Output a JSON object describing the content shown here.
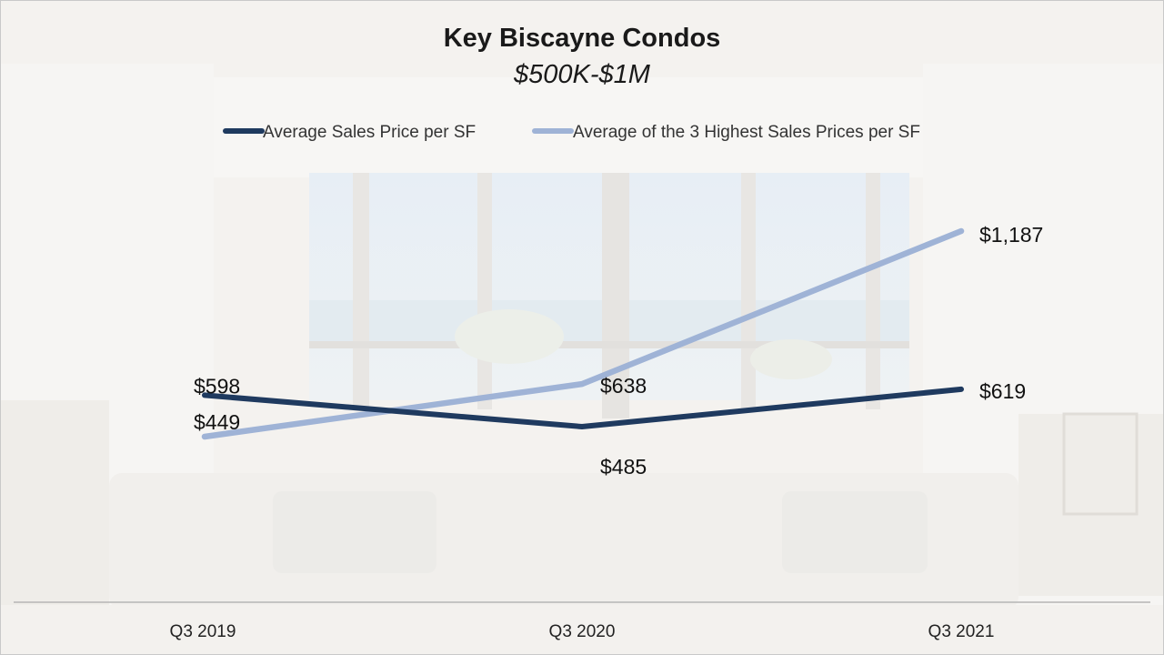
{
  "chart_data": {
    "type": "line",
    "title": "Key Biscayne Condos",
    "subtitle": "$500K-$1M",
    "categories": [
      "Q3 2019",
      "Q3 2020",
      "Q3 2021"
    ],
    "series": [
      {
        "name": "Average Sales Price per SF",
        "color": "#1f3a5f",
        "values": [
          598,
          485,
          619
        ],
        "labels": [
          "$598",
          "$485",
          "$619"
        ]
      },
      {
        "name": "Average of the 3 Highest Sales Prices per SF",
        "color": "#9fb3d6",
        "values": [
          449,
          638,
          1187
        ],
        "labels": [
          "$449",
          "$638",
          "$1,187"
        ]
      }
    ],
    "legend_position": "top",
    "grid": false
  }
}
